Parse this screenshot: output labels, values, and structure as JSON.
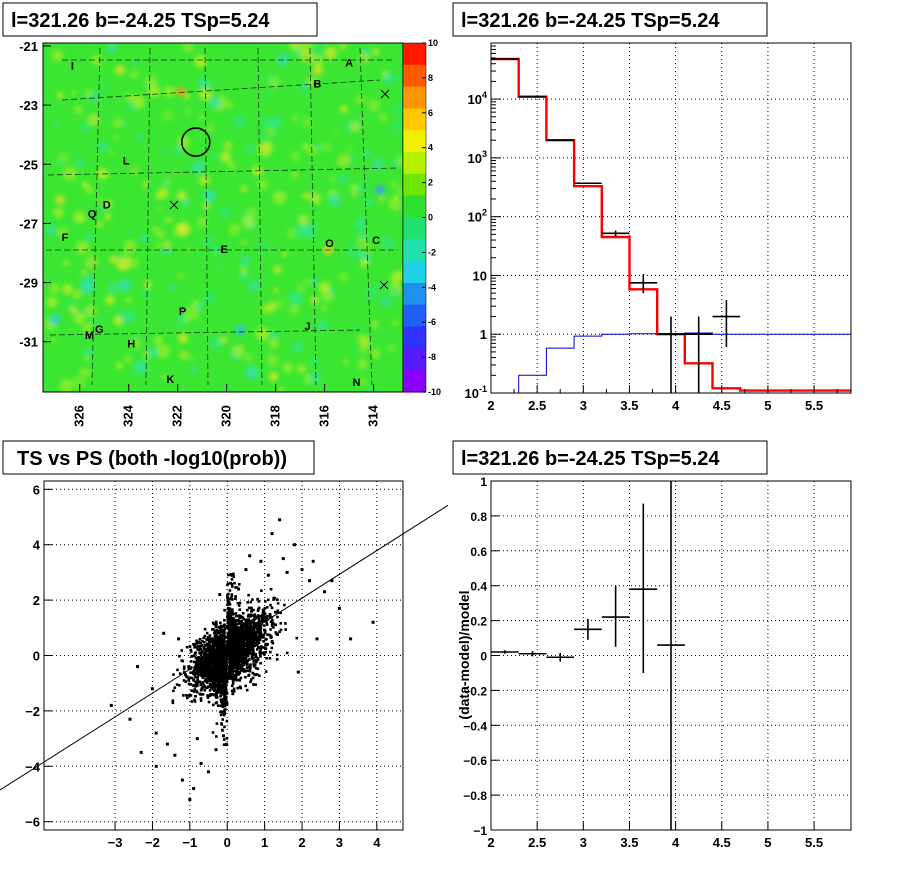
{
  "chart_data": [
    {
      "type": "heatmap",
      "title": "l=321.26 b=-24.25 TSp=5.24",
      "xlim": [
        327.5,
        312.8
      ],
      "ylim": [
        -32.7,
        -20.9
      ],
      "xticks": [
        "326",
        "324",
        "322",
        "320",
        "318",
        "316",
        "314"
      ],
      "yticks": [
        "-21",
        "-23",
        "-25",
        "-27",
        "-29",
        "-31"
      ],
      "colorbar": {
        "min": -10,
        "max": 10,
        "ticks": [
          "10",
          "8",
          "6",
          "4",
          "2",
          "0",
          "-2",
          "-4",
          "-6",
          "-8",
          "-10"
        ]
      },
      "source_labels": [
        {
          "label": "A",
          "l": 315.0,
          "b": -21.7
        },
        {
          "label": "B",
          "l": 316.3,
          "b": -22.4
        },
        {
          "label": "I",
          "l": 326.3,
          "b": -21.8
        },
        {
          "label": "L",
          "l": 324.1,
          "b": -25.0
        },
        {
          "label": "D",
          "l": 324.9,
          "b": -26.5
        },
        {
          "label": "Q",
          "l": 325.5,
          "b": -26.8
        },
        {
          "label": "F",
          "l": 326.6,
          "b": -27.6
        },
        {
          "label": "E",
          "l": 320.1,
          "b": -28.0
        },
        {
          "label": "O",
          "l": 315.8,
          "b": -27.8
        },
        {
          "label": "C",
          "l": 313.9,
          "b": -27.7
        },
        {
          "label": "P",
          "l": 321.8,
          "b": -30.1
        },
        {
          "label": "J",
          "l": 316.7,
          "b": -30.6
        },
        {
          "label": "G",
          "l": 325.2,
          "b": -30.7
        },
        {
          "label": "M",
          "l": 325.6,
          "b": -30.9
        },
        {
          "label": "H",
          "l": 323.9,
          "b": -31.2
        },
        {
          "label": "K",
          "l": 322.3,
          "b": -32.4
        },
        {
          "label": "N",
          "l": 314.7,
          "b": -32.5
        }
      ],
      "marked_position": {
        "l": 321.26,
        "b": -24.25
      }
    },
    {
      "type": "line",
      "title": "l=321.26 b=-24.25 TSp=5.24",
      "xlim": [
        2,
        5.9
      ],
      "ylim_log": [
        0.1,
        90000
      ],
      "xticks": [
        "2",
        "2.5",
        "3",
        "3.5",
        "4",
        "4.5",
        "5",
        "5.5"
      ],
      "yticks": [
        "10^4",
        "10^3",
        "10^2",
        "10",
        "1",
        "10^-1"
      ],
      "bin_edges": [
        2.0,
        2.3,
        2.6,
        2.9,
        3.2,
        3.5,
        3.8,
        4.1,
        4.4,
        4.7,
        5.0,
        5.3,
        5.6,
        5.9
      ],
      "series": [
        {
          "values": [
            48000,
            11000,
            2000,
            330,
            45,
            5.8,
            1.0,
            0.32,
            0.12,
            0.11,
            0.11,
            0.11,
            0.11
          ],
          "color": "#ff0000"
        },
        {
          "values": [
            0.1,
            0.2,
            0.58,
            0.93,
            1.0,
            1.02,
            1.03,
            1.05,
            1.0,
            1.0,
            1.0,
            1.0,
            1.0
          ],
          "color": "#0000cc"
        }
      ],
      "data_points": [
        {
          "x": 2.15,
          "y": 48000,
          "xerr": 0.15,
          "yerr": [
            0,
            0
          ]
        },
        {
          "x": 2.45,
          "y": 11000,
          "xerr": 0.15,
          "yerr": [
            0,
            0
          ]
        },
        {
          "x": 2.75,
          "y": 2000,
          "xerr": 0.15,
          "yerr": [
            0,
            0
          ]
        },
        {
          "x": 3.05,
          "y": 370,
          "xerr": 0.15,
          "yerr": [
            0,
            0
          ]
        },
        {
          "x": 3.35,
          "y": 52,
          "xerr": 0.15,
          "yerr": [
            46,
            58
          ]
        },
        {
          "x": 3.65,
          "y": 7.5,
          "xerr": 0.15,
          "yerr": [
            5.0,
            10.5
          ]
        },
        {
          "x": 3.95,
          "y": 1.0,
          "xerr": 0.15,
          "yerr": [
            0.1,
            2.0
          ]
        },
        {
          "x": 4.25,
          "y": 1.0,
          "xerr": 0.15,
          "yerr": [
            0.1,
            2.0
          ]
        },
        {
          "x": 4.55,
          "y": 2.0,
          "xerr": 0.15,
          "yerr": [
            0.6,
            3.8
          ]
        }
      ]
    },
    {
      "type": "scatter",
      "title": "TS vs PS (both -log10(prob))",
      "xlim": [
        -4.9,
        4.7
      ],
      "ylim": [
        -6.3,
        6.3
      ],
      "xticks": [
        "−3",
        "−2",
        "−1",
        "0",
        "1",
        "2",
        "3",
        "4"
      ],
      "yticks": [
        "6",
        "4",
        "2",
        "0",
        "−2",
        "−4",
        "−6"
      ],
      "fit_line": {
        "x0": -4.9,
        "y0": -4.9,
        "x1": 4.7,
        "y1": 4.7
      },
      "outlier_points": [
        [
          -3.1,
          -1.8
        ],
        [
          -2.6,
          -2.3
        ],
        [
          -2.3,
          -3.5
        ],
        [
          -1.9,
          -2.8
        ],
        [
          -1.6,
          -3.2
        ],
        [
          -1.4,
          -3.6
        ],
        [
          -1.2,
          -4.5
        ],
        [
          -1.0,
          -5.2
        ],
        [
          -0.9,
          -4.8
        ],
        [
          -0.7,
          -3.9
        ],
        [
          -0.5,
          -4.2
        ],
        [
          -0.3,
          -3.4
        ],
        [
          -2.0,
          -1.2
        ],
        [
          -1.7,
          0.8
        ],
        [
          -2.4,
          -0.4
        ],
        [
          -1.3,
          0.6
        ],
        [
          1.2,
          4.4
        ],
        [
          1.5,
          3.5
        ],
        [
          1.8,
          4.0
        ],
        [
          2.0,
          3.1
        ],
        [
          2.2,
          2.7
        ],
        [
          2.6,
          2.3
        ],
        [
          3.0,
          1.7
        ],
        [
          3.3,
          0.6
        ],
        [
          3.9,
          1.2
        ],
        [
          1.4,
          4.9
        ],
        [
          0.9,
          3.4
        ],
        [
          0.6,
          3.6
        ],
        [
          2.3,
          3.4
        ],
        [
          2.8,
          2.7
        ],
        [
          1.1,
          2.9
        ],
        [
          1.6,
          3.0
        ],
        [
          0.3,
          2.4
        ],
        [
          0.5,
          3.1
        ],
        [
          -0.2,
          2.2
        ],
        [
          1.9,
          -0.6
        ],
        [
          2.4,
          0.6
        ],
        [
          -1.9,
          -4.0
        ],
        [
          -0.8,
          -3.0
        ],
        [
          -0.1,
          -2.9
        ]
      ]
    },
    {
      "type": "scatter",
      "title": "l=321.26 b=-24.25 TSp=5.24",
      "ylabel": "(data-model)/model",
      "xlim": [
        2,
        5.9
      ],
      "ylim": [
        -1,
        1
      ],
      "xticks": [
        "2",
        "2.5",
        "3",
        "3.5",
        "4",
        "4.5",
        "5",
        "5.5"
      ],
      "yticks": [
        "1",
        "0.8",
        "0.6",
        "0.4",
        "0.2",
        "0",
        "−0.2",
        "−0.4",
        "−0.6",
        "−0.8",
        "−1"
      ],
      "points": [
        {
          "x": 2.15,
          "y": 0.02,
          "xerr": 0.15,
          "ylo": 0.01,
          "yhi": 0.03
        },
        {
          "x": 2.45,
          "y": 0.01,
          "xerr": 0.15,
          "ylo": -0.005,
          "yhi": 0.025
        },
        {
          "x": 2.75,
          "y": -0.01,
          "xerr": 0.15,
          "ylo": -0.035,
          "yhi": 0.015
        },
        {
          "x": 3.05,
          "y": 0.15,
          "xerr": 0.15,
          "ylo": 0.09,
          "yhi": 0.21
        },
        {
          "x": 3.35,
          "y": 0.22,
          "xerr": 0.15,
          "ylo": 0.05,
          "yhi": 0.4
        },
        {
          "x": 3.65,
          "y": 0.38,
          "xerr": 0.15,
          "ylo": -0.1,
          "yhi": 0.87
        },
        {
          "x": 3.95,
          "y": 0.06,
          "xerr": 0.15,
          "ylo": -1.0,
          "yhi": 1.0
        }
      ]
    }
  ]
}
